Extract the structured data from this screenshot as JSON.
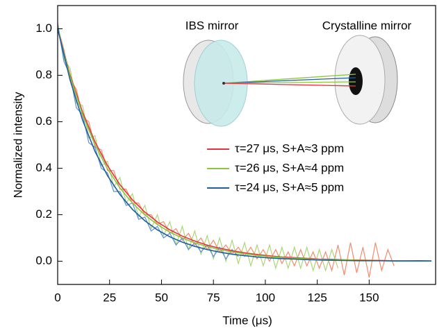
{
  "chart_data": {
    "type": "line",
    "x_label": "Time (μs)",
    "y_label": "Normalized intensity",
    "xlim": [
      0,
      182
    ],
    "ylim": [
      -0.1,
      1.1
    ],
    "xticks": [
      0,
      25,
      50,
      75,
      100,
      125,
      150
    ],
    "yticks": [
      {
        "value": 0,
        "label": "0.0"
      },
      0.2,
      0.4,
      0.6,
      0.8,
      {
        "value": 1,
        "label": "1.0"
      }
    ],
    "inset_labels": [
      "IBS mirror",
      "Crystalline mirror"
    ],
    "data_traces": [
      {
        "color": "#f58a6c",
        "x": [
          0,
          3,
          6,
          9,
          12,
          15,
          18,
          21,
          24,
          27,
          30,
          33,
          36,
          39,
          42,
          45,
          48,
          51,
          54,
          57,
          60,
          63,
          66,
          69,
          72,
          75,
          78,
          81,
          84,
          87,
          90,
          93,
          96,
          99,
          102,
          105,
          108,
          111,
          114,
          117,
          120,
          123,
          126,
          129,
          132,
          135,
          138,
          141,
          144,
          147,
          150,
          153,
          156,
          159,
          162
        ],
        "values": [
          1.01,
          0.91,
          0.78,
          0.74,
          0.62,
          0.6,
          0.49,
          0.48,
          0.39,
          0.39,
          0.31,
          0.31,
          0.25,
          0.25,
          0.2,
          0.2,
          0.16,
          0.17,
          0.12,
          0.14,
          0.09,
          0.12,
          0.07,
          0.1,
          0.05,
          0.09,
          0.04,
          0.07,
          0.03,
          0.06,
          0.02,
          0.06,
          0.01,
          0.05,
          0.0,
          0.05,
          -0.01,
          0.04,
          -0.02,
          0.05,
          -0.02,
          0.04,
          -0.03,
          0.04,
          -0.04,
          0.07,
          -0.06,
          0.08,
          -0.05,
          0.06,
          -0.07,
          0.08,
          -0.04,
          0.05,
          -0.02
        ]
      },
      {
        "color": "#acd676",
        "x": [
          0,
          3,
          6,
          9,
          12,
          15,
          18,
          21,
          24,
          27,
          30,
          33,
          36,
          39,
          42,
          45,
          48,
          51,
          54,
          57,
          60,
          63,
          66,
          69,
          72,
          75,
          78,
          81,
          84,
          87,
          90,
          93,
          96,
          99,
          102,
          105,
          108,
          111,
          114,
          117,
          120,
          123,
          126,
          129,
          132,
          135
        ],
        "values": [
          1.03,
          0.87,
          0.83,
          0.68,
          0.67,
          0.53,
          0.54,
          0.41,
          0.43,
          0.32,
          0.36,
          0.25,
          0.29,
          0.19,
          0.24,
          0.14,
          0.2,
          0.11,
          0.17,
          0.07,
          0.15,
          0.05,
          0.13,
          0.03,
          0.11,
          0.01,
          0.1,
          0.0,
          0.09,
          -0.01,
          0.08,
          -0.02,
          0.07,
          -0.02,
          0.07,
          -0.03,
          0.06,
          -0.03,
          0.06,
          -0.03,
          0.06,
          -0.04,
          0.05,
          -0.04,
          0.05,
          -0.03
        ]
      },
      {
        "color": "#5a8fd8",
        "x": [
          0,
          3,
          6,
          9,
          12,
          15,
          18,
          21,
          24,
          27,
          30,
          33,
          36,
          39,
          42,
          45,
          48,
          51,
          54,
          57,
          60,
          63,
          66,
          69,
          72,
          75,
          78,
          81,
          84,
          87
        ],
        "values": [
          1.02,
          0.86,
          0.8,
          0.66,
          0.63,
          0.51,
          0.49,
          0.4,
          0.38,
          0.3,
          0.3,
          0.24,
          0.25,
          0.18,
          0.19,
          0.13,
          0.15,
          0.1,
          0.12,
          0.07,
          0.1,
          0.05,
          0.08,
          0.04,
          0.07,
          0.02,
          0.06,
          0.01,
          0.05,
          0.02
        ]
      }
    ],
    "fit_x": [
      0,
      6,
      12,
      18,
      24,
      30,
      36,
      42,
      48,
      54,
      60,
      66,
      72,
      78,
      84,
      90,
      96,
      102,
      108,
      114,
      120,
      126,
      132,
      138,
      144,
      150,
      156,
      162,
      168,
      174,
      180
    ],
    "series": [
      {
        "name": "τ=27 μs, S+A≈3 ppm",
        "color": "#e8323b",
        "values": [
          1,
          0.801,
          0.641,
          0.513,
          0.411,
          0.329,
          0.264,
          0.211,
          0.169,
          0.135,
          0.108,
          0.087,
          0.069,
          0.056,
          0.045,
          0.036,
          0.029,
          0.023,
          0.018,
          0.015,
          0.012,
          0.009,
          0.008,
          0.006,
          0.005,
          0.004,
          0.003,
          0.002,
          0.002,
          0.002,
          0.001
        ]
      },
      {
        "name": "τ=26 μs, S+A≈4 ppm",
        "color": "#8cc63f",
        "values": [
          1,
          0.794,
          0.63,
          0.5,
          0.397,
          0.315,
          0.25,
          0.199,
          0.158,
          0.125,
          0.1,
          0.079,
          0.063,
          0.05,
          0.04,
          0.032,
          0.025,
          0.02,
          0.016,
          0.013,
          0.01,
          0.008,
          0.006,
          0.005,
          0.004,
          0.003,
          0.002,
          0.002,
          0.002,
          0.001,
          0.001
        ]
      },
      {
        "name": "τ=24 μs, S+A≈5 ppm",
        "color": "#1f5f99",
        "values": [
          1,
          0.779,
          0.607,
          0.472,
          0.368,
          0.287,
          0.223,
          0.174,
          0.135,
          0.105,
          0.082,
          0.064,
          0.05,
          0.039,
          0.03,
          0.024,
          0.018,
          0.014,
          0.011,
          0.009,
          0.007,
          0.005,
          0.004,
          0.003,
          0.002,
          0.002,
          0.002,
          0.001,
          0.001,
          0.001,
          0.001
        ]
      }
    ]
  }
}
